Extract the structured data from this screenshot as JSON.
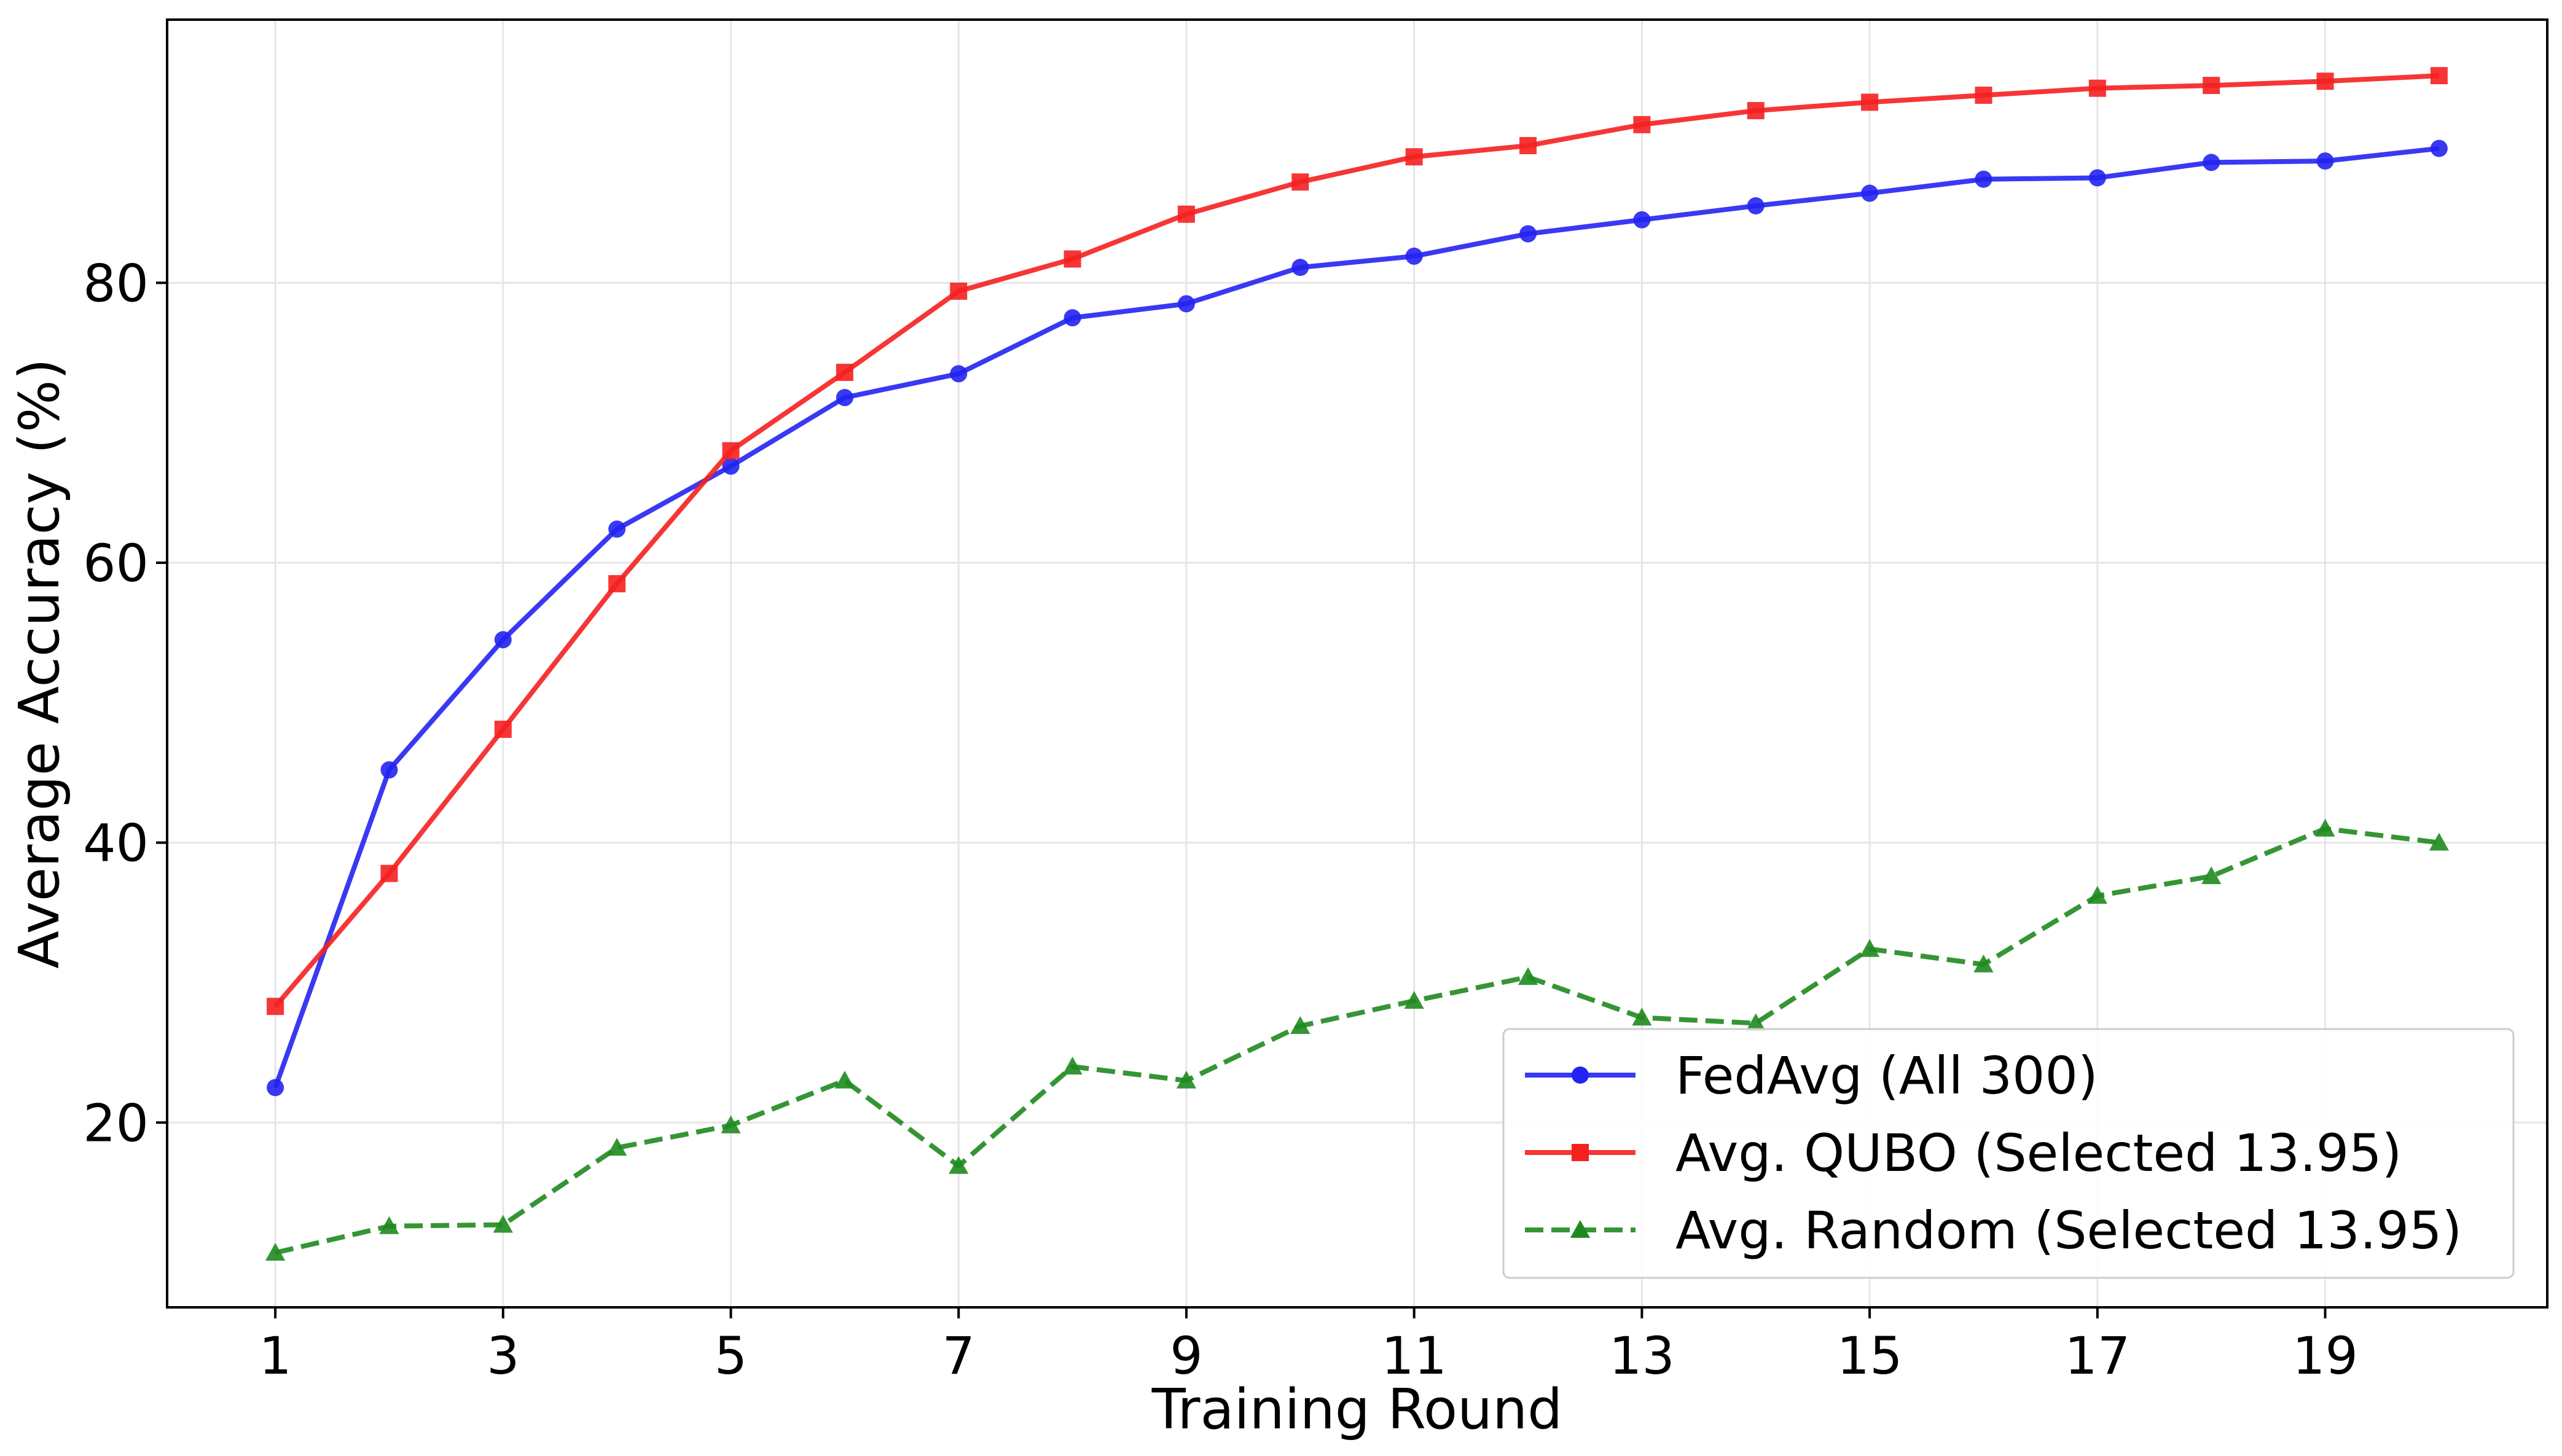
{
  "chart_data": {
    "type": "line",
    "title": "",
    "xlabel": "Training Round",
    "ylabel": "Average Accuracy (%)",
    "xlim": [
      0.05,
      20.95
    ],
    "ylim": [
      6.8,
      98.8
    ],
    "xticks": [
      1,
      3,
      5,
      7,
      9,
      11,
      13,
      15,
      17,
      19
    ],
    "yticks": [
      20,
      40,
      60,
      80
    ],
    "grid": true,
    "legend_position": "lower-right",
    "x": [
      1,
      2,
      3,
      4,
      5,
      6,
      7,
      8,
      9,
      10,
      11,
      12,
      13,
      14,
      15,
      16,
      17,
      18,
      19,
      20
    ],
    "series": [
      {
        "name": "FedAvg (All 300)",
        "color": "#2323f2",
        "marker": "circle",
        "dash": "solid",
        "values": [
          22.5,
          45.2,
          54.5,
          62.4,
          66.9,
          71.8,
          73.5,
          77.5,
          78.5,
          81.1,
          81.9,
          83.5,
          84.5,
          85.5,
          86.4,
          87.4,
          87.5,
          88.6,
          88.7,
          89.6
        ]
      },
      {
        "name": "Avg. QUBO (Selected 13.95)",
        "color": "#f52020",
        "marker": "square",
        "dash": "solid",
        "values": [
          28.3,
          37.8,
          48.1,
          58.5,
          68.0,
          73.6,
          79.4,
          81.7,
          84.9,
          87.2,
          89.0,
          89.8,
          91.3,
          92.3,
          92.9,
          93.4,
          93.9,
          94.1,
          94.4,
          94.8
        ]
      },
      {
        "name": "Avg. Random (Selected 13.95)",
        "color": "#1f8a1f",
        "marker": "triangle",
        "dash": "dashed",
        "values": [
          10.7,
          12.6,
          12.7,
          18.2,
          19.8,
          23.0,
          16.9,
          24.0,
          23.0,
          26.9,
          28.7,
          30.4,
          27.5,
          27.1,
          32.4,
          31.3,
          36.2,
          37.6,
          41.0,
          40.0
        ]
      }
    ]
  }
}
